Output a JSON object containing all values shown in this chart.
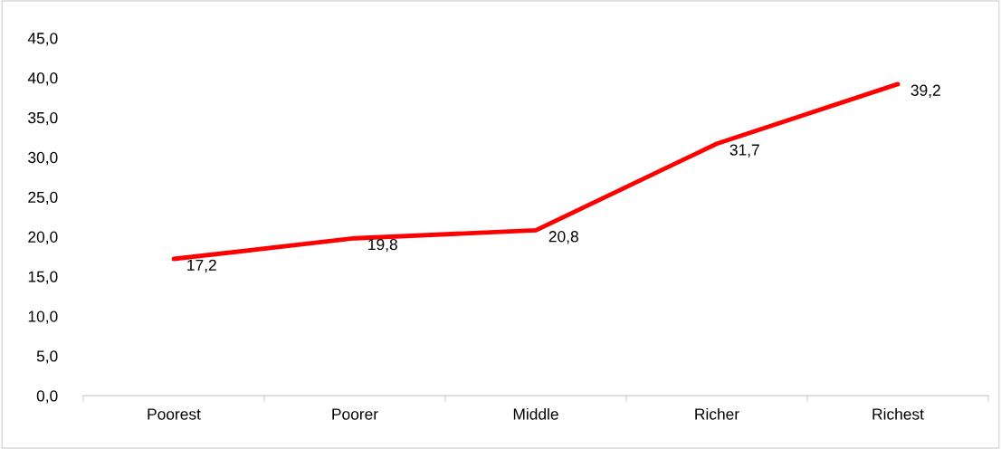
{
  "chart_data": {
    "type": "line",
    "categories": [
      "Poorest",
      "Poorer",
      "Middle",
      "Richer",
      "Richest"
    ],
    "series": [
      {
        "color": "#ff0000",
        "values": [
          17.2,
          19.8,
          20.8,
          31.7,
          39.2
        ],
        "value_labels": [
          "17,2",
          "19,8",
          "20,8",
          "31,7",
          "39,2"
        ]
      }
    ],
    "ylim": [
      0,
      45
    ],
    "yticks": [
      {
        "value": 0,
        "label": "0,0"
      },
      {
        "value": 5,
        "label": "5,0"
      },
      {
        "value": 10,
        "label": "10,0"
      },
      {
        "value": 15,
        "label": "15,0"
      },
      {
        "value": 20,
        "label": "20,0"
      },
      {
        "value": 25,
        "label": "25,0"
      },
      {
        "value": 30,
        "label": "30,0"
      },
      {
        "value": 35,
        "label": "35,0"
      },
      {
        "value": 40,
        "label": "40,0"
      },
      {
        "value": 45,
        "label": "45,0"
      }
    ],
    "grid": false,
    "legend": false,
    "marker": "none",
    "line_style": "solid"
  }
}
